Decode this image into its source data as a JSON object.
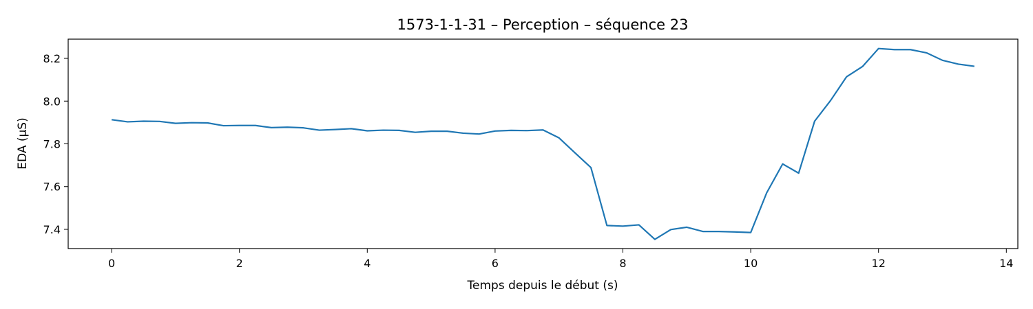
{
  "chart_data": {
    "type": "line",
    "title": "1573-1-1-31 – Perception – séquence 23",
    "xlabel": "Temps depuis le début (s)",
    "ylabel": "EDA (µS)",
    "xlim": [
      -0.68,
      14.18
    ],
    "ylim": [
      7.31,
      8.29
    ],
    "xticks": [
      0,
      2,
      4,
      6,
      8,
      10,
      12,
      14
    ],
    "yticks": [
      7.4,
      7.6,
      7.8,
      8.0,
      8.2
    ],
    "grid": false,
    "series": [
      {
        "color": "#1f77b4",
        "x": [
          0,
          0.25,
          0.5,
          0.75,
          1,
          1.25,
          1.5,
          1.75,
          2,
          2.25,
          2.5,
          2.75,
          3,
          3.25,
          3.5,
          3.75,
          4,
          4.25,
          4.5,
          4.75,
          5,
          5.25,
          5.5,
          5.75,
          6,
          6.25,
          6.5,
          6.75,
          7,
          7.25,
          7.5,
          7.75,
          8,
          8.25,
          8.5,
          8.75,
          9,
          9.25,
          9.5,
          9.75,
          10,
          10.25,
          10.5,
          10.75,
          11,
          11.25,
          11.5,
          11.75,
          12,
          12.25,
          12.5,
          12.75,
          13,
          13.25,
          13.5
        ],
        "y": [
          7.913,
          7.903,
          7.906,
          7.905,
          7.896,
          7.899,
          7.898,
          7.885,
          7.886,
          7.886,
          7.876,
          7.878,
          7.875,
          7.864,
          7.867,
          7.871,
          7.861,
          7.864,
          7.863,
          7.854,
          7.859,
          7.859,
          7.85,
          7.846,
          7.86,
          7.863,
          7.862,
          7.865,
          7.828,
          7.758,
          7.689,
          7.418,
          7.415,
          7.421,
          7.353,
          7.399,
          7.41,
          7.39,
          7.39,
          7.388,
          7.385,
          7.571,
          7.706,
          7.663,
          7.906,
          8.003,
          8.114,
          8.162,
          8.246,
          8.241,
          8.241,
          8.226,
          8.191,
          8.173,
          8.163
        ]
      }
    ]
  }
}
